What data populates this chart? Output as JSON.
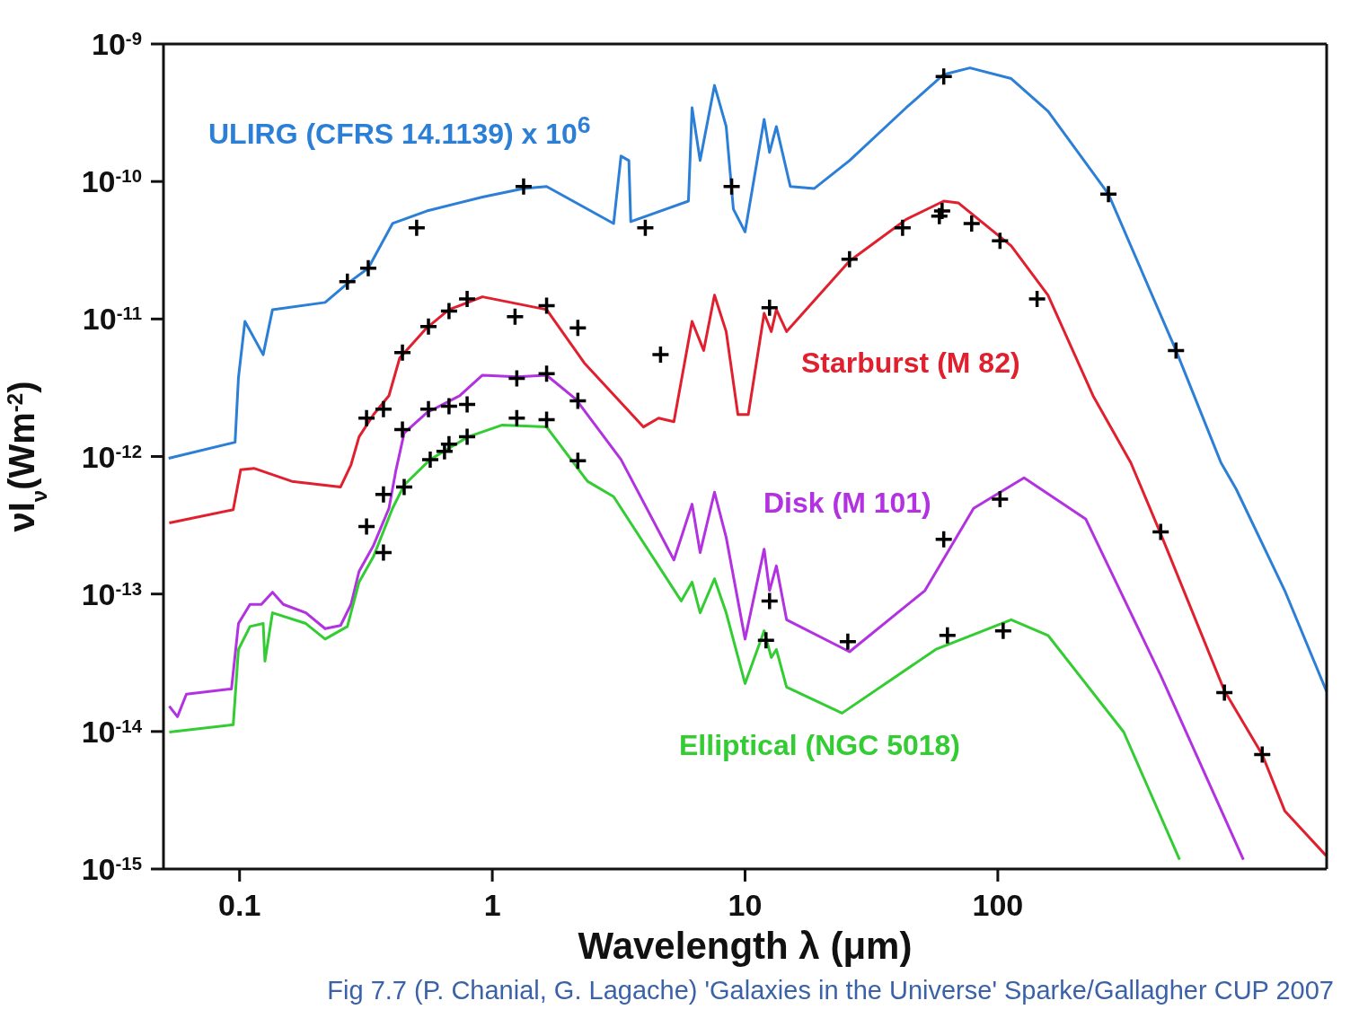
{
  "chart_data": {
    "type": "line",
    "xlabel": "Wavelength λ (μm)",
    "ylabel": "νI$_{ν}$(Wm$^{-2}$)",
    "log": "xy",
    "marker": "none",
    "xlim": [
      0.05,
      2000
    ],
    "xticks": [
      0.1,
      1,
      10,
      100
    ],
    "ylim": [
      1e-15,
      1e-09
    ],
    "yticks": [
      {
        "value": 1e-15,
        "label": "10$^{-15}$"
      },
      {
        "value": 1e-14,
        "label": "10$^{-14}$"
      },
      {
        "value": 1e-13,
        "label": "10$^{-13}$"
      },
      {
        "value": 1e-12,
        "label": "10$^{-12}$"
      },
      {
        "value": 1e-11,
        "label": "10$^{-11}$"
      },
      {
        "value": 1e-10,
        "label": "10$^{-10}$"
      },
      {
        "value": 1e-09,
        "label": "10$^{-9}$"
      }
    ],
    "annotations": [
      "Fig 7.7 (P. Chanial, G. Lagache) 'Galaxies in the Universe' Sparke/Gallagher CUP 2007"
    ],
    "series": [
      {
        "name": "ULIRG (CFRS 14.1139) x 10$^{6}$",
        "color": "#2b7fd6",
        "x": [
          0.0524,
          0.096,
          0.099,
          0.105,
          0.124,
          0.135,
          0.218,
          0.267,
          0.323,
          0.403,
          0.55,
          0.914,
          1.33,
          1.64,
          3.02,
          3.23,
          3.47,
          3.53,
          5.97,
          6.17,
          6.64,
          7.57,
          8.42,
          8.99,
          10.0,
          11.9,
          12.5,
          13.3,
          15.1,
          18.8,
          25.9,
          43.4,
          61.1,
          77.6,
          113,
          158,
          274,
          507,
          764,
          877,
          1365,
          2000
        ],
        "values": [
          9.7e-13,
          1.27e-12,
          3.74e-12,
          9.6e-12,
          5.5e-12,
          1.17e-11,
          1.32e-11,
          1.81e-11,
          2.34e-11,
          4.95e-11,
          6.1e-11,
          7.7e-11,
          8.9e-11,
          9.2e-11,
          4.95e-11,
          1.53e-10,
          1.42e-10,
          5.1e-11,
          7.2e-11,
          3.44e-10,
          1.42e-10,
          5e-10,
          2.51e-10,
          6.3e-11,
          4.3e-11,
          2.83e-10,
          1.63e-10,
          2.51e-10,
          9.2e-11,
          8.9e-11,
          1.42e-10,
          3.44e-10,
          6e-10,
          6.7e-10,
          5.6e-10,
          3.24e-10,
          8.1e-11,
          5.9e-12,
          9e-13,
          5.8e-13,
          1.06e-13,
          1.95e-14
        ]
      },
      {
        "name": "Starburst (M 82)",
        "color": "#e0202e",
        "x": [
          0.0527,
          0.0944,
          0.101,
          0.114,
          0.161,
          0.251,
          0.276,
          0.297,
          0.339,
          0.39,
          0.43,
          0.55,
          0.674,
          0.914,
          1.64,
          2.31,
          3.96,
          4.55,
          5.23,
          6.17,
          6.86,
          7.57,
          8.42,
          9.37,
          10.3,
          11.9,
          12.7,
          13.3,
          14.6,
          25.9,
          43.4,
          61.1,
          69.7,
          113,
          158,
          238,
          336,
          441,
          788,
          1112,
          1365,
          1990
        ],
        "values": [
          3.29e-13,
          4.1e-13,
          8e-13,
          8.2e-13,
          6.6e-13,
          6e-13,
          8.7e-13,
          1.39e-12,
          2.02e-12,
          2.77e-12,
          5.2e-12,
          8.6e-12,
          1.17e-11,
          1.45e-11,
          1.17e-11,
          4.8e-12,
          1.64e-12,
          1.9e-12,
          1.79e-12,
          9.6e-12,
          5.9e-12,
          1.49e-11,
          8.1e-12,
          2.02e-12,
          2.02e-12,
          1.1e-11,
          8.1e-12,
          1.17e-11,
          8.1e-12,
          2.64e-11,
          5.3e-11,
          7.2e-11,
          7e-11,
          3.4e-11,
          1.49e-11,
          2.77e-12,
          9e-13,
          2.74e-13,
          1.98e-14,
          6.8e-15,
          2.65e-15,
          1.25e-15
        ]
      },
      {
        "name": "Disk (M 101)",
        "color": "#b231e0",
        "x": [
          0.0527,
          0.0568,
          0.0616,
          0.0929,
          0.099,
          0.11,
          0.122,
          0.135,
          0.149,
          0.183,
          0.218,
          0.251,
          0.276,
          0.297,
          0.339,
          0.39,
          0.416,
          0.448,
          0.55,
          0.744,
          0.914,
          1.25,
          1.64,
          2.14,
          3.23,
          5.23,
          6.17,
          6.64,
          7.57,
          8.42,
          10.0,
          11.9,
          12.5,
          13.3,
          14.6,
          25.9,
          51.5,
          80.2,
          127,
          223,
          441,
          937
        ],
        "values": [
          1.53e-14,
          1.28e-14,
          1.87e-14,
          2.04e-14,
          6.1e-14,
          8.4e-14,
          8.4e-14,
          1.03e-13,
          8.4e-14,
          7.3e-14,
          5.6e-14,
          5.9e-14,
          8.4e-14,
          1.46e-13,
          2.26e-13,
          4.2e-13,
          8e-13,
          1.48e-12,
          2.08e-12,
          2.77e-12,
          3.9e-12,
          3.8e-12,
          3.9e-12,
          2.61e-12,
          9.5e-13,
          1.77e-13,
          4.5e-13,
          2e-13,
          5.5e-13,
          2.58e-13,
          4.7e-14,
          2.12e-13,
          1.06e-13,
          1.6e-13,
          6.5e-14,
          3.8e-14,
          1.06e-13,
          4.2e-13,
          7e-13,
          3.5e-13,
          2.56e-14,
          1.17e-15
        ]
      },
      {
        "name": "Elliptical (NGC 5018)",
        "color": "#33cc33",
        "x": [
          0.0527,
          0.0944,
          0.099,
          0.11,
          0.124,
          0.126,
          0.135,
          0.183,
          0.218,
          0.267,
          0.297,
          0.339,
          0.403,
          0.448,
          0.568,
          0.801,
          1.09,
          1.64,
          2.38,
          3.02,
          5.59,
          6.17,
          6.64,
          7.57,
          8.42,
          10.0,
          11.9,
          12.7,
          13.3,
          14.6,
          24.2,
          56.8,
          113,
          158,
          315,
          524
        ],
        "values": [
          9.9e-15,
          1.12e-14,
          3.95e-14,
          5.8e-14,
          6.1e-14,
          3.25e-14,
          7.3e-14,
          6.1e-14,
          4.7e-14,
          5.8e-14,
          1.22e-13,
          1.88e-13,
          4.2e-13,
          6.2e-13,
          9.5e-13,
          1.39e-12,
          1.69e-12,
          1.64e-12,
          6.6e-13,
          5.1e-13,
          8.9e-14,
          1.22e-13,
          7.3e-14,
          1.29e-13,
          7.3e-14,
          2.23e-14,
          5.4e-14,
          3.45e-14,
          3.95e-14,
          2.1e-14,
          1.36e-14,
          3.95e-14,
          6.5e-14,
          5e-14,
          9.9e-15,
          1.17e-15
        ]
      },
      {
        "type": "scatter",
        "marker": "cross",
        "color": "#000000",
        "x": [
          1.33,
          0.502,
          0.323,
          0.267,
          4.03,
          8.85,
          0.795,
          0.674,
          0.559,
          0.441,
          1.23,
          1.64,
          2.18,
          4.63,
          1.25,
          1.64,
          2.18,
          0.795,
          0.674,
          0.559,
          0.371,
          0.318,
          0.441,
          1.25,
          1.64,
          2.18,
          0.795,
          0.674,
          0.647,
          0.568,
          0.448,
          0.371,
          0.318,
          0.371,
          61.1,
          274,
          507,
          12.5,
          25.9,
          42.0,
          60.2,
          58.7,
          78.8,
          102,
          143,
          102,
          61.1,
          12.5,
          12.1,
          25.5,
          63.2,
          105,
          441,
          788,
          1112
        ],
        "values": [
          9.2e-11,
          4.6e-11,
          2.34e-11,
          1.87e-11,
          4.6e-11,
          9.2e-11,
          1.4e-11,
          1.14e-11,
          8.8e-12,
          5.7e-12,
          1.04e-11,
          1.25e-11,
          8.6e-12,
          5.5e-12,
          3.7e-12,
          4e-12,
          2.54e-12,
          2.39e-12,
          2.32e-12,
          2.21e-12,
          2.21e-12,
          1.9e-12,
          1.57e-12,
          1.9e-12,
          1.85e-12,
          9.3e-13,
          1.39e-12,
          1.23e-12,
          1.09e-12,
          9.5e-13,
          6e-13,
          5.3e-13,
          3.1e-13,
          2e-13,
          5.8e-10,
          8.1e-11,
          5.9e-12,
          1.21e-11,
          2.72e-11,
          4.6e-11,
          6.1e-11,
          5.6e-11,
          4.95e-11,
          3.7e-11,
          1.4e-11,
          4.9e-13,
          2.5e-13,
          8.9e-14,
          4.6e-14,
          4.5e-14,
          5e-14,
          5.4e-14,
          2.83e-13,
          1.92e-14,
          6.8e-15
        ]
      }
    ]
  }
}
